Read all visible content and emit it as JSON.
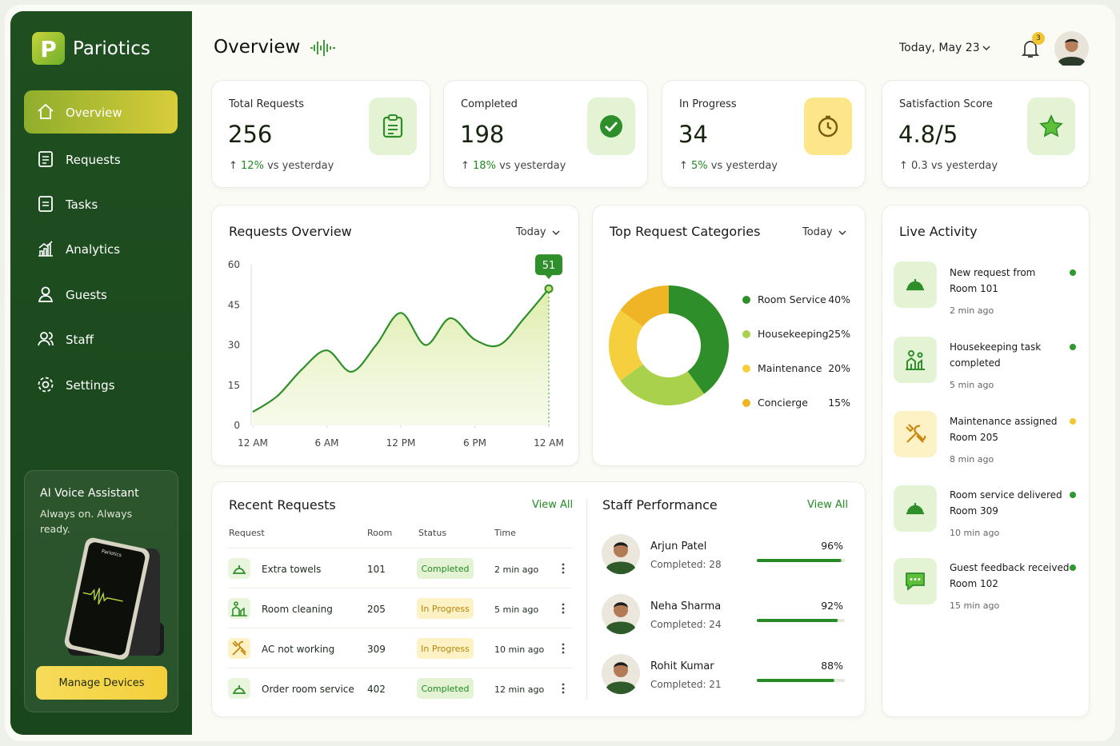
{
  "sidebar": {
    "logo_letter": "P",
    "brand": "Pariotics",
    "nav": [
      "Overview",
      "Requests",
      "Tasks",
      "Analytics",
      "Guests",
      "Staff",
      "Settings"
    ],
    "assistant": {
      "title": "AI Voice Assistant",
      "subtitle": "Always on. Always ready.",
      "button": "Manage Devices"
    }
  },
  "header": {
    "title": "Overview",
    "date": "Today, May 23",
    "notifications": "3"
  },
  "stats": [
    {
      "label": "Total Requests",
      "value": "256",
      "change": "12%",
      "note": "vs yesterday"
    },
    {
      "label": "Completed",
      "value": "198",
      "change": "18%",
      "note": "vs yesterday"
    },
    {
      "label": "In Progress",
      "value": "34",
      "change": "5%",
      "note": "vs yesterday"
    },
    {
      "label": "Satisfaction Score",
      "value": "4.8/5",
      "change": "0.3",
      "note": "vs yesterday"
    }
  ],
  "chart_data": [
    {
      "type": "line",
      "title": "Requests Overview",
      "filter": "Today",
      "color": "#2f8f2a",
      "x": [
        0,
        2,
        4,
        6,
        8,
        10,
        12,
        14,
        16,
        18,
        20,
        22,
        24
      ],
      "values": [
        5,
        11,
        21,
        28,
        20,
        30,
        42,
        30,
        40,
        32,
        30,
        40,
        51
      ],
      "xlim": [
        0,
        24
      ],
      "xticks": [
        {
          "value": 0,
          "label": "12 AM"
        },
        {
          "value": 6,
          "label": "6 AM"
        },
        {
          "value": 12,
          "label": "12 PM"
        },
        {
          "value": 18,
          "label": "6 PM"
        },
        {
          "value": 24,
          "label": "12 AM"
        }
      ],
      "ylim": [
        0,
        60
      ],
      "yticks": [
        0,
        15,
        30,
        45,
        60
      ]
    },
    {
      "type": "pie",
      "title": "Top Request Categories",
      "filter": "Today",
      "categories": [
        "Room Service",
        "Housekeeping",
        "Maintenance",
        "Concierge"
      ],
      "values": [
        40,
        25,
        20,
        15
      ],
      "value_labels": [
        "40%",
        "25%",
        "20%",
        "15%"
      ],
      "colors": [
        "#2e8f2a",
        "#a9d14c",
        "#f5cf3e",
        "#f0b526"
      ]
    }
  ],
  "recent_requests": {
    "title": "Recent Requests",
    "link": "View All",
    "headers": [
      "Request",
      "Room",
      "Status",
      "Time"
    ],
    "rows": [
      [
        "Extra towels",
        "101",
        "Completed",
        "2 min ago"
      ],
      [
        "Room cleaning",
        "205",
        "In Progress",
        "5 min ago"
      ],
      [
        "AC not working",
        "309",
        "In Progress",
        "10 min ago"
      ],
      [
        "Order room service",
        "402",
        "Completed",
        "12 min ago"
      ]
    ]
  },
  "staff": {
    "title": "Staff Performance",
    "link": "View All",
    "members": [
      {
        "name": "Arjun Patel",
        "completed": "Completed: 28",
        "score": 96,
        "score_label": "96%"
      },
      {
        "name": "Neha Sharma",
        "completed": "Completed: 24",
        "score": 92,
        "score_label": "92%"
      },
      {
        "name": "Rohit Kumar",
        "completed": "Completed: 21",
        "score": 88,
        "score_label": "88%"
      }
    ]
  },
  "live_activity": {
    "title": "Live Activity",
    "items": [
      {
        "lines": [
          "New request from",
          "Room 101"
        ],
        "time": "2 min ago",
        "color": "#2e9a2e"
      },
      {
        "lines": [
          "Housekeeping task",
          "completed"
        ],
        "time": "5 min ago",
        "color": "#2e9a2e"
      },
      {
        "lines": [
          "Maintenance assigned",
          "Room 205"
        ],
        "time": "8 min ago",
        "color": "#f2c531"
      },
      {
        "lines": [
          "Room service delivered",
          "Room 309"
        ],
        "time": "10 min ago",
        "color": "#2e9a2e"
      },
      {
        "lines": [
          "Guest feedback received",
          "Room 102"
        ],
        "time": "15 min ago",
        "color": "#2e9a2e"
      }
    ]
  }
}
